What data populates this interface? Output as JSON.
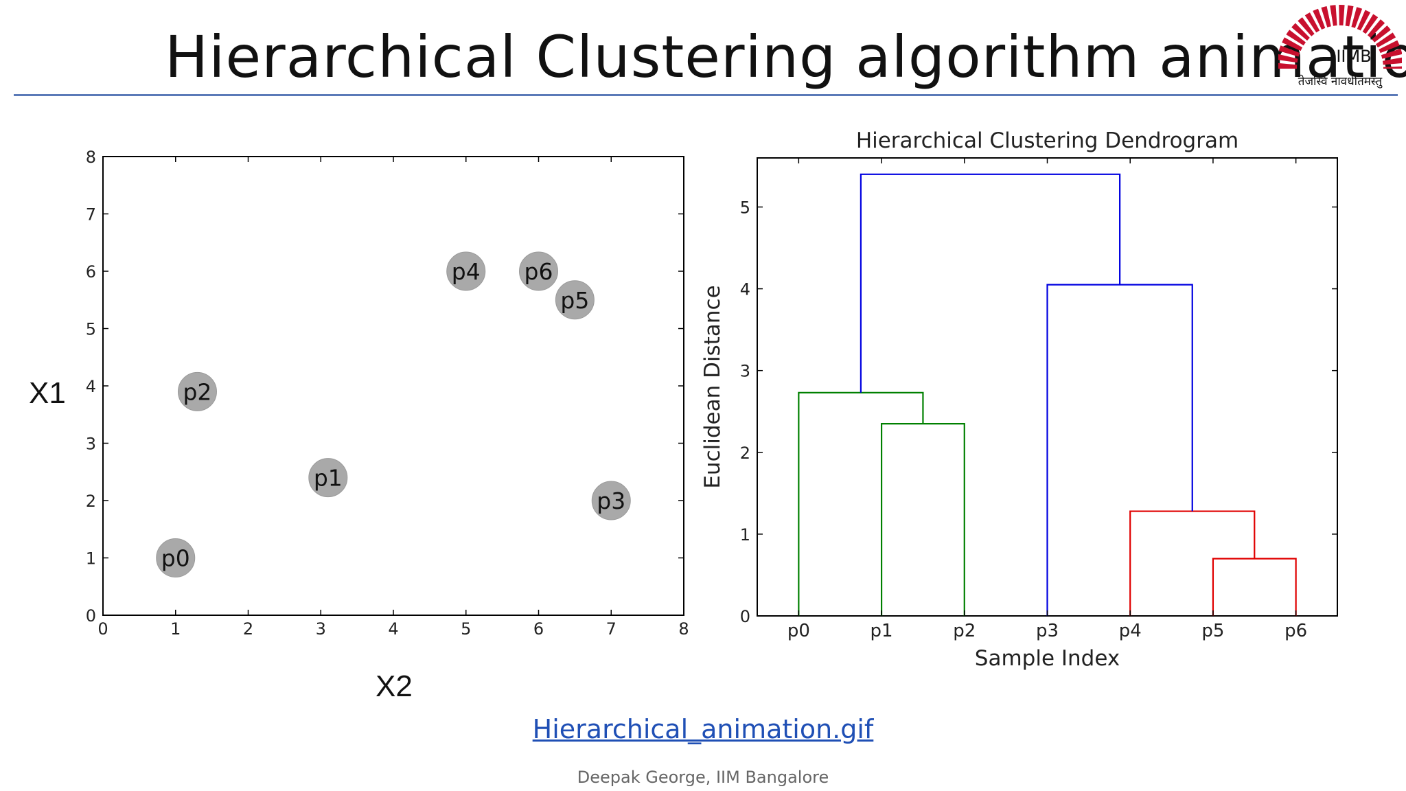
{
  "slide": {
    "title": "Hierarchical Clustering algorithm animation",
    "x1_label": "X1",
    "x2_label": "X2",
    "link_text": "Hierarchical_animation.gif",
    "footer": "Deepak George, IIM Bangalore",
    "logo": {
      "text": "IIMB",
      "motto": "तेजस्वि नावधीतमस्तु",
      "color": "#c8102e",
      "icon": "iimb-logo"
    },
    "rule_color": "#5b7ab8",
    "link_color": "#1f4fb5"
  },
  "chart_data": [
    {
      "type": "scatter",
      "title": "",
      "xlabel": "",
      "ylabel": "",
      "xlim": [
        0,
        8
      ],
      "ylim": [
        0,
        8
      ],
      "xticks": [
        "0",
        "1",
        "2",
        "3",
        "4",
        "5",
        "6",
        "7",
        "8"
      ],
      "yticks": [
        "0",
        "1",
        "2",
        "3",
        "4",
        "5",
        "6",
        "7",
        "8"
      ],
      "grid": false,
      "marker_color": "#a9a9a9",
      "points": [
        {
          "label": "p0",
          "x": 1.0,
          "y": 1.0
        },
        {
          "label": "p1",
          "x": 3.1,
          "y": 2.4
        },
        {
          "label": "p2",
          "x": 1.3,
          "y": 3.9
        },
        {
          "label": "p3",
          "x": 7.0,
          "y": 2.0
        },
        {
          "label": "p4",
          "x": 5.0,
          "y": 6.0
        },
        {
          "label": "p5",
          "x": 6.5,
          "y": 5.5
        },
        {
          "label": "p6",
          "x": 6.0,
          "y": 6.0
        }
      ]
    },
    {
      "type": "dendrogram",
      "title": "Hierarchical Clustering Dendrogram",
      "xlabel": "Sample Index",
      "ylabel": "Euclidean Distance",
      "leaves": [
        "p0",
        "p1",
        "p2",
        "p3",
        "p4",
        "p5",
        "p6"
      ],
      "ylim": [
        0,
        5.6
      ],
      "yticks": [
        "0",
        "1",
        "2",
        "3",
        "4",
        "5"
      ],
      "grid": false,
      "links": [
        {
          "left": 1,
          "right": 2,
          "height": 2.35,
          "left_height": 0,
          "right_height": 0,
          "color": "#008000"
        },
        {
          "left": 0,
          "right": 1.5,
          "height": 2.73,
          "left_height": 0,
          "right_height": 2.35,
          "color": "#008000"
        },
        {
          "left": 5,
          "right": 6,
          "height": 0.7,
          "left_height": 0,
          "right_height": 0,
          "color": "#e00000"
        },
        {
          "left": 4,
          "right": 5.5,
          "height": 1.28,
          "left_height": 0,
          "right_height": 0.7,
          "color": "#e00000"
        },
        {
          "left": 3,
          "right": 4.75,
          "height": 4.05,
          "left_height": 0,
          "right_height": 1.28,
          "color": "#0000e0"
        },
        {
          "left": 0.75,
          "right": 3.875,
          "height": 5.4,
          "left_height": 2.73,
          "right_height": 4.05,
          "color": "#0000e0"
        }
      ]
    }
  ]
}
